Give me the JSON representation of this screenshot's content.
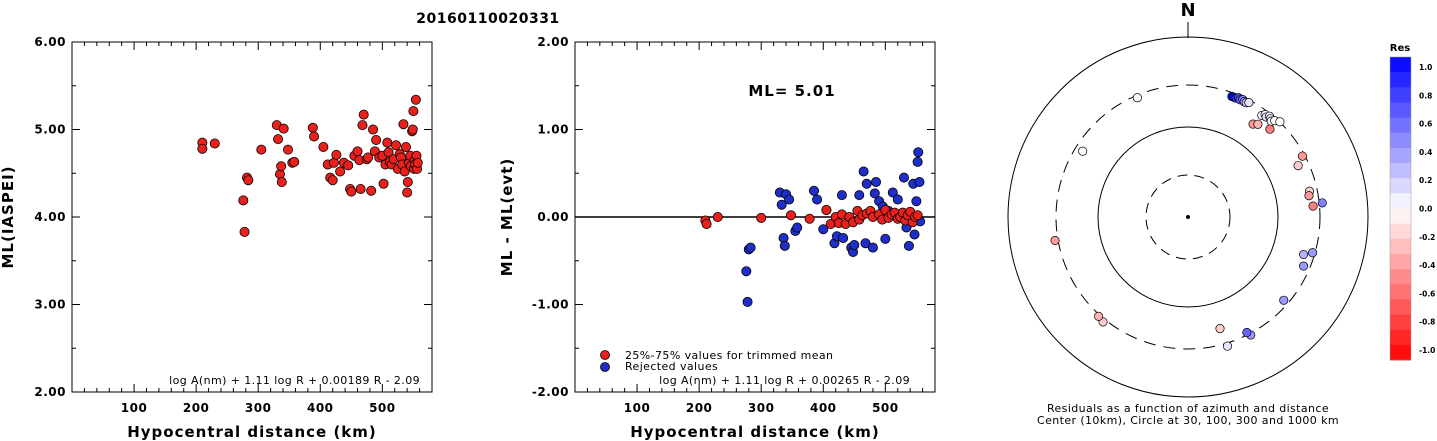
{
  "title": "20160110020331",
  "chart_data": [
    {
      "type": "scatter",
      "name": "ML(IASPEI) vs hypocentral distance",
      "xlabel": "Hypocentral distance (km)",
      "ylabel": "ML(IASPEI)",
      "xlim": [
        0,
        580
      ],
      "ylim": [
        2.0,
        6.0
      ],
      "xticks": [
        "100",
        "200",
        "300",
        "400",
        "500"
      ],
      "yticks": [
        "2.00",
        "3.00",
        "4.00",
        "5.00",
        "6.00"
      ],
      "formula": "log A(nm) + 1.11 log R + 0.00189 R - 2.09",
      "color": "#e8211c",
      "points": [
        [
          210,
          4.85
        ],
        [
          210,
          4.78
        ],
        [
          230,
          4.84
        ],
        [
          276,
          4.19
        ],
        [
          278,
          3.83
        ],
        [
          282,
          4.45
        ],
        [
          284,
          4.42
        ],
        [
          305,
          4.77
        ],
        [
          330,
          5.05
        ],
        [
          332,
          4.89
        ],
        [
          335,
          4.49
        ],
        [
          337,
          4.58
        ],
        [
          338,
          4.4
        ],
        [
          341,
          5.01
        ],
        [
          348,
          4.77
        ],
        [
          355,
          4.62
        ],
        [
          358,
          4.63
        ],
        [
          388,
          5.02
        ],
        [
          390,
          4.92
        ],
        [
          405,
          4.8
        ],
        [
          412,
          4.6
        ],
        [
          416,
          4.45
        ],
        [
          420,
          4.42
        ],
        [
          422,
          4.62
        ],
        [
          426,
          4.71
        ],
        [
          432,
          4.52
        ],
        [
          438,
          4.62
        ],
        [
          445,
          4.59
        ],
        [
          448,
          4.32
        ],
        [
          450,
          4.29
        ],
        [
          455,
          4.7
        ],
        [
          460,
          4.75
        ],
        [
          463,
          4.65
        ],
        [
          465,
          4.32
        ],
        [
          468,
          5.05
        ],
        [
          470,
          5.17
        ],
        [
          475,
          4.66
        ],
        [
          477,
          4.68
        ],
        [
          482,
          4.3
        ],
        [
          485,
          5.0
        ],
        [
          488,
          4.75
        ],
        [
          490,
          4.88
        ],
        [
          495,
          4.68
        ],
        [
          500,
          4.7
        ],
        [
          502,
          4.38
        ],
        [
          505,
          4.6
        ],
        [
          508,
          4.85
        ],
        [
          510,
          4.74
        ],
        [
          512,
          4.63
        ],
        [
          515,
          4.6
        ],
        [
          518,
          4.66
        ],
        [
          522,
          4.82
        ],
        [
          525,
          4.55
        ],
        [
          528,
          4.72
        ],
        [
          530,
          4.68
        ],
        [
          532,
          4.6
        ],
        [
          534,
          5.06
        ],
        [
          536,
          4.52
        ],
        [
          538,
          4.8
        ],
        [
          540,
          4.28
        ],
        [
          541,
          4.4
        ],
        [
          543,
          4.62
        ],
        [
          545,
          4.7
        ],
        [
          546,
          4.58
        ],
        [
          548,
          4.98
        ],
        [
          549,
          5.0
        ],
        [
          550,
          5.21
        ],
        [
          551,
          4.55
        ],
        [
          552,
          4.65
        ],
        [
          553,
          4.6
        ],
        [
          554,
          5.34
        ],
        [
          555,
          4.7
        ],
        [
          556,
          4.55
        ],
        [
          557,
          4.62
        ]
      ]
    },
    {
      "type": "scatter",
      "name": "ML - ML(evt) residuals vs hypocentral distance",
      "xlabel": "Hypocentral distance (km)",
      "ylabel": "ML - ML(evt)",
      "xlim": [
        0,
        580
      ],
      "ylim": [
        -2.0,
        2.0
      ],
      "xticks": [
        "100",
        "200",
        "300",
        "400",
        "500"
      ],
      "yticks": [
        "-2.00",
        "-1.00",
        "0.00",
        "1.00",
        "2.00"
      ],
      "annotation": "ML= 5.01",
      "formula": "log A(nm) + 1.11 log R + 0.00265 R - 2.09",
      "legend": [
        "25%-75% values for trimmed mean",
        "Rejected values"
      ],
      "used_color": "#e8211c",
      "rejected_color": "#1f2ec8",
      "used": [
        [
          210,
          -0.04
        ],
        [
          212,
          -0.08
        ],
        [
          230,
          0.0
        ],
        [
          300,
          -0.01
        ],
        [
          348,
          0.02
        ],
        [
          378,
          -0.02
        ],
        [
          405,
          0.08
        ],
        [
          412,
          -0.08
        ],
        [
          420,
          0.0
        ],
        [
          425,
          -0.07
        ],
        [
          430,
          0.03
        ],
        [
          436,
          -0.08
        ],
        [
          442,
          0.0
        ],
        [
          448,
          -0.06
        ],
        [
          455,
          0.07
        ],
        [
          458,
          -0.03
        ],
        [
          463,
          0.02
        ],
        [
          470,
          0.04
        ],
        [
          476,
          0.07
        ],
        [
          480,
          0.0
        ],
        [
          490,
          0.03
        ],
        [
          495,
          -0.03
        ],
        [
          500,
          0.08
        ],
        [
          505,
          -0.01
        ],
        [
          510,
          0.03
        ],
        [
          515,
          0.05
        ],
        [
          520,
          -0.02
        ],
        [
          524,
          0.0
        ],
        [
          528,
          0.05
        ],
        [
          532,
          -0.04
        ],
        [
          536,
          0.02
        ],
        [
          540,
          0.06
        ],
        [
          544,
          -0.06
        ],
        [
          548,
          0.0
        ],
        [
          552,
          0.02
        ]
      ],
      "rejected": [
        [
          276,
          -0.62
        ],
        [
          278,
          -0.97
        ],
        [
          280,
          -0.37
        ],
        [
          283,
          -0.35
        ],
        [
          330,
          0.28
        ],
        [
          333,
          0.14
        ],
        [
          336,
          -0.24
        ],
        [
          338,
          -0.33
        ],
        [
          340,
          0.26
        ],
        [
          345,
          0.2
        ],
        [
          355,
          -0.16
        ],
        [
          358,
          -0.12
        ],
        [
          385,
          0.3
        ],
        [
          390,
          0.2
        ],
        [
          400,
          -0.14
        ],
        [
          405,
          0.08
        ],
        [
          418,
          -0.3
        ],
        [
          422,
          -0.22
        ],
        [
          430,
          0.25
        ],
        [
          432,
          -0.24
        ],
        [
          445,
          -0.35
        ],
        [
          448,
          -0.4
        ],
        [
          450,
          -0.32
        ],
        [
          458,
          0.25
        ],
        [
          465,
          0.52
        ],
        [
          468,
          -0.3
        ],
        [
          470,
          0.38
        ],
        [
          480,
          -0.35
        ],
        [
          483,
          0.27
        ],
        [
          485,
          0.4
        ],
        [
          490,
          0.18
        ],
        [
          496,
          0.12
        ],
        [
          500,
          -0.25
        ],
        [
          505,
          0.07
        ],
        [
          512,
          0.28
        ],
        [
          520,
          0.2
        ],
        [
          524,
          0.03
        ],
        [
          530,
          0.45
        ],
        [
          534,
          -0.12
        ],
        [
          538,
          -0.33
        ],
        [
          540,
          0.05
        ],
        [
          545,
          0.38
        ],
        [
          547,
          -0.2
        ],
        [
          550,
          0.18
        ],
        [
          552,
          0.63
        ],
        [
          553,
          0.74
        ],
        [
          555,
          0.4
        ],
        [
          556,
          -0.05
        ]
      ]
    },
    {
      "type": "scatter",
      "name": "Residuals as a function of azimuth and distance",
      "north_label": "N",
      "caption_line1": "Residuals as a function of azimuth and distance",
      "caption_line2": "Center (10km), Circle at 30, 100, 300 and 1000 km",
      "colorbar_title": "Res",
      "colorbar_ticks": [
        "1.0",
        "0.8",
        "0.6",
        "0.4",
        "0.2",
        "0.0",
        "-0.2",
        "-0.4",
        "-0.6",
        "-0.8",
        "-1.0"
      ],
      "circle_radii_km": [
        30,
        100,
        300,
        1000
      ],
      "polar_points": [
        {
          "az": 20,
          "r": 0.95,
          "res": 1.0
        },
        {
          "az": 21,
          "r": 0.95,
          "res": 0.9
        },
        {
          "az": 22,
          "r": 0.95,
          "res": 0.8
        },
        {
          "az": 23,
          "r": 0.96,
          "res": 0.7
        },
        {
          "az": 24,
          "r": 0.95,
          "res": 0.6
        },
        {
          "az": 25,
          "r": 0.96,
          "res": 0.5
        },
        {
          "az": 26,
          "r": 0.95,
          "res": 0.4
        },
        {
          "az": 27,
          "r": 0.95,
          "res": 0.2
        },
        {
          "az": 28,
          "r": 0.96,
          "res": 0.1
        },
        {
          "az": 36,
          "r": 0.93,
          "res": 0.05
        },
        {
          "az": 37,
          "r": 0.95,
          "res": 0.0
        },
        {
          "az": 38,
          "r": 0.94,
          "res": 0.15
        },
        {
          "az": 39,
          "r": 0.96,
          "res": 0.05
        },
        {
          "az": 40,
          "r": 0.95,
          "res": 0.1
        },
        {
          "az": 41,
          "r": 0.94,
          "res": 0.0
        },
        {
          "az": 42,
          "r": 0.96,
          "res": 0.0
        },
        {
          "az": 44,
          "r": 0.98,
          "res": 0.0
        },
        {
          "az": 35,
          "r": 0.84,
          "res": -0.4
        },
        {
          "az": 37,
          "r": 0.86,
          "res": -0.3
        },
        {
          "az": 43,
          "r": 0.89,
          "res": -0.5
        },
        {
          "az": 62,
          "r": 0.96,
          "res": -0.4
        },
        {
          "az": 65,
          "r": 0.9,
          "res": -0.2
        },
        {
          "az": 78,
          "r": 0.92,
          "res": -0.2
        },
        {
          "az": 80,
          "r": 0.91,
          "res": -0.4
        },
        {
          "az": 84,
          "r": 1.0,
          "res": 0.5
        },
        {
          "az": 85,
          "r": 0.93,
          "res": -0.5
        },
        {
          "az": 106,
          "r": 0.96,
          "res": 0.4
        },
        {
          "az": 108,
          "r": 0.9,
          "res": 0.3
        },
        {
          "az": 113,
          "r": 0.93,
          "res": 0.4
        },
        {
          "az": 131,
          "r": 0.94,
          "res": 0.4
        },
        {
          "az": 152,
          "r": 0.99,
          "res": 0.4
        },
        {
          "az": 153,
          "r": 0.96,
          "res": 0.6
        },
        {
          "az": 163,
          "r": 1.0,
          "res": 0.1
        },
        {
          "az": 164,
          "r": 0.86,
          "res": -0.2
        },
        {
          "az": 219,
          "r": 1.0,
          "res": -0.2
        },
        {
          "az": 222,
          "r": 0.99,
          "res": -0.3
        },
        {
          "az": 260,
          "r": 1.0,
          "res": -0.4
        },
        {
          "az": 302,
          "r": 0.92,
          "res": 0.0
        },
        {
          "az": 337,
          "r": 0.96,
          "res": 0.0
        }
      ]
    }
  ]
}
